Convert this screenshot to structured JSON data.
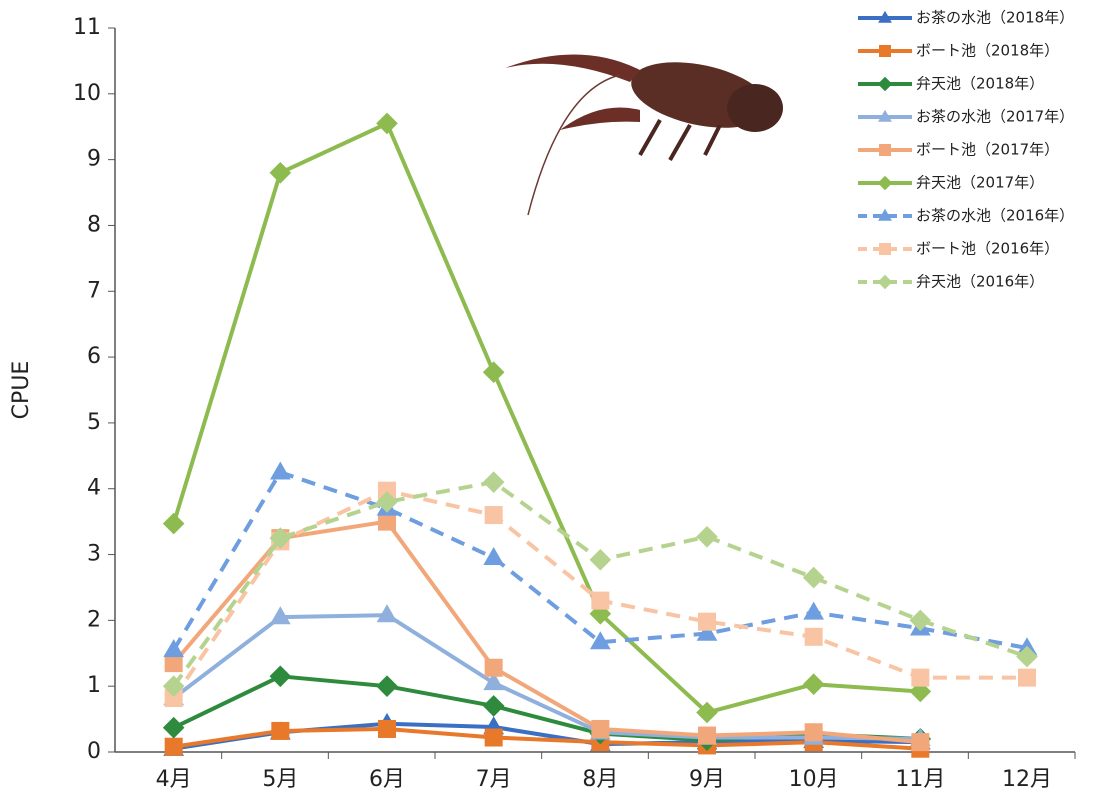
{
  "chart_data": {
    "type": "line",
    "y_label": "CPUE",
    "categories": [
      "4月",
      "5月",
      "6月",
      "7月",
      "8月",
      "9月",
      "10月",
      "11月",
      "12月"
    ],
    "ylim": [
      0,
      11
    ],
    "yticks": [
      0,
      1,
      2,
      3,
      4,
      5,
      6,
      7,
      8,
      9,
      10,
      11
    ],
    "series": [
      {
        "name": "お茶の水池（2018年）",
        "color": "#3a6fc4",
        "marker": "triangle",
        "dashed": false,
        "values": [
          0.05,
          0.3,
          0.43,
          0.38,
          0.12,
          0.15,
          0.17,
          0.15,
          null
        ]
      },
      {
        "name": "ボート池（2018年）",
        "color": "#e8782a",
        "marker": "square",
        "dashed": false,
        "values": [
          0.08,
          0.32,
          0.35,
          0.22,
          0.15,
          0.1,
          0.15,
          0.05,
          null
        ]
      },
      {
        "name": "弁天池（2018年）",
        "color": "#2e8b3e",
        "marker": "diamond",
        "dashed": false,
        "values": [
          0.37,
          1.15,
          1.0,
          0.7,
          0.28,
          0.18,
          0.27,
          0.2,
          null
        ]
      },
      {
        "name": "お茶の水池（2017年）",
        "color": "#8fb0dd",
        "marker": "triangle",
        "dashed": false,
        "values": [
          0.82,
          2.05,
          2.08,
          1.05,
          0.3,
          0.22,
          0.22,
          0.2,
          null
        ]
      },
      {
        "name": "ボート池（2017年）",
        "color": "#f2a77a",
        "marker": "square",
        "dashed": false,
        "values": [
          1.35,
          3.25,
          3.5,
          1.28,
          0.35,
          0.25,
          0.3,
          0.15,
          null
        ]
      },
      {
        "name": "弁天池（2017年）",
        "color": "#8dbb4f",
        "marker": "diamond",
        "dashed": false,
        "values": [
          3.47,
          8.8,
          9.55,
          5.77,
          2.1,
          0.6,
          1.03,
          0.92,
          null
        ]
      },
      {
        "name": "お茶の水池（2016年）",
        "color": "#6e9de0",
        "marker": "triangle",
        "dashed": true,
        "values": [
          1.55,
          4.25,
          3.7,
          2.95,
          1.67,
          1.8,
          2.12,
          1.88,
          1.58
        ]
      },
      {
        "name": "ボート池（2016年）",
        "color": "#f8c4a4",
        "marker": "square",
        "dashed": true,
        "values": [
          0.82,
          3.2,
          3.97,
          3.6,
          2.3,
          1.98,
          1.75,
          1.13,
          1.13
        ]
      },
      {
        "name": "弁天池（2016年）",
        "color": "#b5d38e",
        "marker": "diamond",
        "dashed": true,
        "values": [
          1.0,
          3.25,
          3.8,
          4.1,
          2.92,
          3.27,
          2.65,
          2.0,
          1.45
        ]
      }
    ]
  }
}
